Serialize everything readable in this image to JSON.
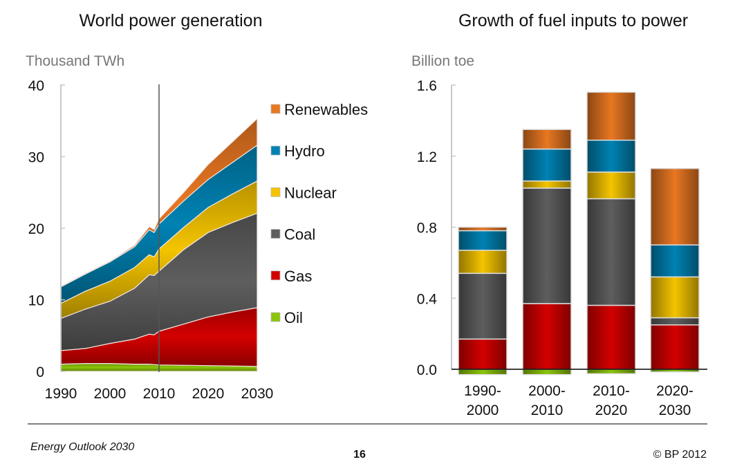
{
  "footer": {
    "left": "Energy Outlook 2030",
    "page": "16",
    "right": "© BP 2012"
  },
  "colors": {
    "Renewables": "#e87722",
    "Hydro": "#0082b3",
    "Nuclear": "#f4c400",
    "Coal": "#5e5e5e",
    "Gas": "#d40000",
    "Oil": "#8cc40a"
  },
  "chart_data": [
    {
      "type": "area",
      "stacked": true,
      "title": "World power generation",
      "ylabel": "Thousand TWh",
      "xlabel": "",
      "xlim": [
        1990,
        2030
      ],
      "ylim": [
        0,
        40
      ],
      "xticks": [
        "1990",
        "2000",
        "2010",
        "2020",
        "2030"
      ],
      "yticks": [
        "0",
        "10",
        "20",
        "30",
        "40"
      ],
      "vertical_marker": 2010,
      "legend_position": "right",
      "x": [
        1990,
        1995,
        2000,
        2005,
        2008,
        2009,
        2010,
        2015,
        2020,
        2025,
        2030
      ],
      "series": [
        {
          "name": "Oil",
          "values": [
            1.0,
            1.1,
            1.1,
            1.0,
            1.0,
            0.95,
            0.9,
            0.85,
            0.8,
            0.75,
            0.7
          ]
        },
        {
          "name": "Gas",
          "values": [
            1.9,
            2.1,
            2.8,
            3.5,
            4.2,
            4.15,
            4.7,
            5.75,
            6.8,
            7.55,
            8.2
          ]
        },
        {
          "name": "Coal",
          "values": [
            4.5,
            5.5,
            5.9,
            7.1,
            8.3,
            8.3,
            8.4,
            10.4,
            11.8,
            12.5,
            13.2
          ]
        },
        {
          "name": "Nuclear",
          "values": [
            2.1,
            2.5,
            2.8,
            2.9,
            2.8,
            2.6,
            3.1,
            3.1,
            3.5,
            4.0,
            4.5
          ]
        },
        {
          "name": "Hydro",
          "values": [
            2.3,
            2.4,
            2.7,
            2.9,
            3.5,
            3.4,
            3.5,
            3.7,
            3.9,
            4.4,
            5.0
          ]
        },
        {
          "name": "Renewables",
          "values": [
            0.1,
            0.1,
            0.1,
            0.2,
            0.4,
            0.4,
            0.7,
            1.2,
            2.1,
            2.9,
            3.7
          ]
        }
      ],
      "legend": [
        "Renewables",
        "Hydro",
        "Nuclear",
        "Coal",
        "Gas",
        "Oil"
      ]
    },
    {
      "type": "bar",
      "stacked": true,
      "title": "Growth of fuel inputs to power",
      "ylabel": "Billion toe",
      "ylim": [
        0,
        1.6
      ],
      "yticks": [
        "0.0",
        "0.4",
        "0.8",
        "1.2",
        "1.6"
      ],
      "categories": [
        [
          "1990-",
          "2000"
        ],
        [
          "2000-",
          "2010"
        ],
        [
          "2010-",
          "2020"
        ],
        [
          "2020-",
          "2030"
        ]
      ],
      "series": [
        {
          "name": "Oil",
          "values": [
            -0.03,
            -0.03,
            -0.025,
            -0.015
          ]
        },
        {
          "name": "Gas",
          "values": [
            0.17,
            0.37,
            0.36,
            0.25
          ]
        },
        {
          "name": "Coal",
          "values": [
            0.37,
            0.65,
            0.6,
            0.04
          ]
        },
        {
          "name": "Nuclear",
          "values": [
            0.13,
            0.04,
            0.15,
            0.23
          ]
        },
        {
          "name": "Hydro",
          "values": [
            0.11,
            0.18,
            0.18,
            0.18
          ]
        },
        {
          "name": "Renewables",
          "values": [
            0.02,
            0.11,
            0.27,
            0.43
          ]
        }
      ]
    }
  ]
}
